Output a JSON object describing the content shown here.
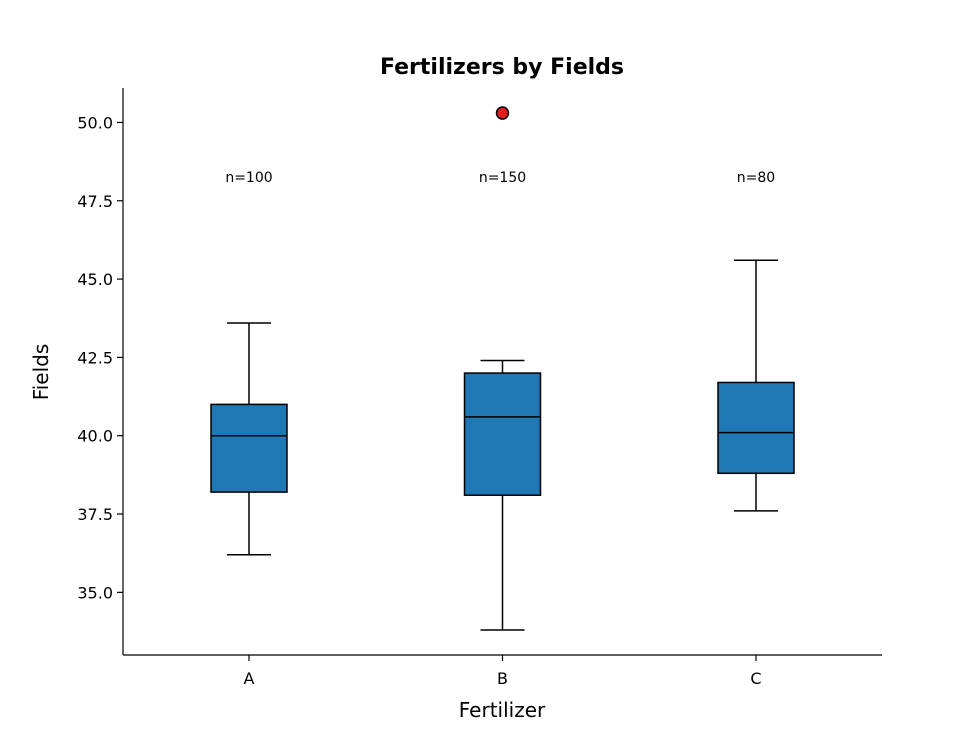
{
  "chart_data": {
    "type": "boxplot",
    "title": "Fertilizers by Fields",
    "xlabel": "Fertilizer",
    "ylabel": "Fields",
    "ylim": [
      33,
      51.1
    ],
    "yticks": [
      35.0,
      37.5,
      40.0,
      42.5,
      45.0,
      47.5,
      50.0
    ],
    "ytick_labels": [
      "35.0",
      "37.5",
      "40.0",
      "42.5",
      "45.0",
      "47.5",
      "50.0"
    ],
    "grid": false,
    "box_color": "#1f77b4",
    "outlier_color": "#e41a1c",
    "count_label_y": 48.1,
    "categories": [
      "A",
      "B",
      "C"
    ],
    "boxes": [
      {
        "category": "A",
        "whisker_low": 36.2,
        "q1": 38.2,
        "median": 40.0,
        "q3": 41.0,
        "whisker_high": 43.6,
        "outliers": [],
        "count_label": "n=100"
      },
      {
        "category": "B",
        "whisker_low": 33.8,
        "q1": 38.1,
        "median": 40.6,
        "q3": 42.0,
        "whisker_high": 42.4,
        "outliers": [
          50.3
        ],
        "count_label": "n=150"
      },
      {
        "category": "C",
        "whisker_low": 37.6,
        "q1": 38.8,
        "median": 40.1,
        "q3": 41.7,
        "whisker_high": 45.6,
        "outliers": [],
        "count_label": "n=80"
      }
    ]
  }
}
